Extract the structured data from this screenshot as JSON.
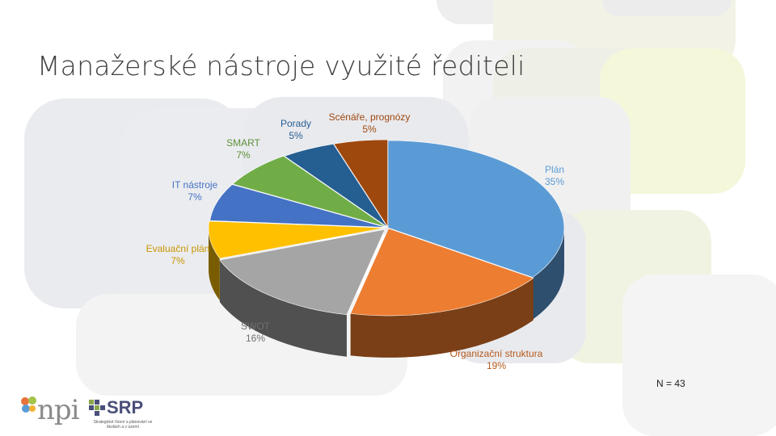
{
  "slide": {
    "title": "Manažerské nástroje využité řediteli",
    "n_label": "N = 43",
    "logo_left": "npi",
    "logo_right": "SRP",
    "logo_right_sub": "Strategické řízení a plánování ve školách a v území"
  },
  "colors": {
    "title": "#404040",
    "bg_gray": "#e9eaee",
    "bg_green": "#f1f3e2"
  },
  "chart_data": {
    "type": "pie",
    "style": "3d-exploded",
    "n": 43,
    "slices": [
      {
        "name": "Plán",
        "percent": 35,
        "label_pct": "35%",
        "color": "#5b9bd5",
        "side": "#2e4f6e",
        "label_color": "#5b9bd5"
      },
      {
        "name": "Organizační struktura",
        "percent": 19,
        "label_pct": "19%",
        "color": "#ed7d31",
        "side": "#7a3f16",
        "label_color": "#b55a1c"
      },
      {
        "name": "SWOT",
        "percent": 16,
        "label_pct": "16%",
        "color": "#a5a5a5",
        "side": "#505050",
        "label_color": "#707070"
      },
      {
        "name": "Evaluační plán",
        "percent": 7,
        "label_pct": "7%",
        "color": "#ffc000",
        "side": "#7a5c00",
        "label_color": "#c89600"
      },
      {
        "name": "IT nástroje",
        "percent": 7,
        "label_pct": "7%",
        "color": "#4472c4",
        "side": "#223b66",
        "label_color": "#4472c4"
      },
      {
        "name": "SMART",
        "percent": 7,
        "label_pct": "7%",
        "color": "#70ad47",
        "side": "#3b5e24",
        "label_color": "#5d9139"
      },
      {
        "name": "Porady",
        "percent": 5,
        "label_pct": "5%",
        "color": "#255e91",
        "side": "#13304b",
        "label_color": "#255e91"
      },
      {
        "name": "Scénáře, prognózy",
        "percent": 5,
        "label_pct": "5%",
        "color": "#9e480e",
        "side": "#4f2407",
        "label_color": "#9e480e"
      }
    ]
  }
}
